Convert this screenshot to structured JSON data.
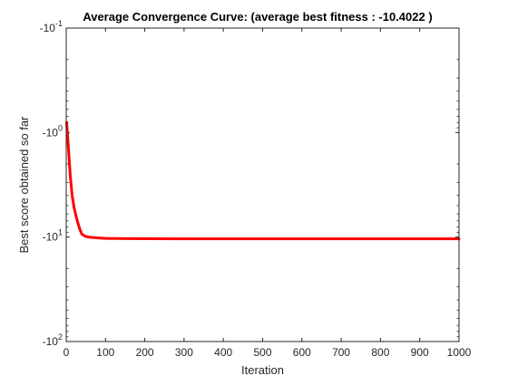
{
  "chart_data": {
    "type": "line",
    "title": "Average Convergence Curve: (average best fitness : -10.4022 )",
    "xlabel": "Iteration",
    "ylabel": "Best score obtained so far",
    "xlim": [
      0,
      1000
    ],
    "ylim": [
      -100,
      -0.1
    ],
    "y_scale": "symlog-negative",
    "grid": false,
    "legend": "none",
    "x_ticks": [
      0,
      100,
      200,
      300,
      400,
      500,
      600,
      700,
      800,
      900,
      1000
    ],
    "x_tick_labels": [
      "0",
      "100",
      "200",
      "300",
      "400",
      "500",
      "600",
      "700",
      "800",
      "900",
      "1000"
    ],
    "y_ticks": [
      {
        "value": -0.1,
        "base": "-10",
        "exp": "-1"
      },
      {
        "value": -1,
        "base": "-10",
        "exp": "0"
      },
      {
        "value": -10,
        "base": "-10",
        "exp": "1"
      },
      {
        "value": -100,
        "base": "-10",
        "exp": "2"
      }
    ],
    "series": [
      {
        "color": "#ff0000",
        "x": [
          1,
          5,
          10,
          15,
          20,
          25,
          30,
          35,
          40,
          50,
          60,
          80,
          100,
          150,
          200,
          300,
          400,
          500,
          600,
          700,
          800,
          900,
          1000
        ],
        "y": [
          -0.8,
          -1.3,
          -2.5,
          -4.0,
          -5.2,
          -6.3,
          -7.4,
          -8.5,
          -9.4,
          -9.9,
          -10.05,
          -10.2,
          -10.3,
          -10.35,
          -10.38,
          -10.39,
          -10.395,
          -10.398,
          -10.4,
          -10.401,
          -10.402,
          -10.4022,
          -10.4022
        ]
      }
    ]
  }
}
